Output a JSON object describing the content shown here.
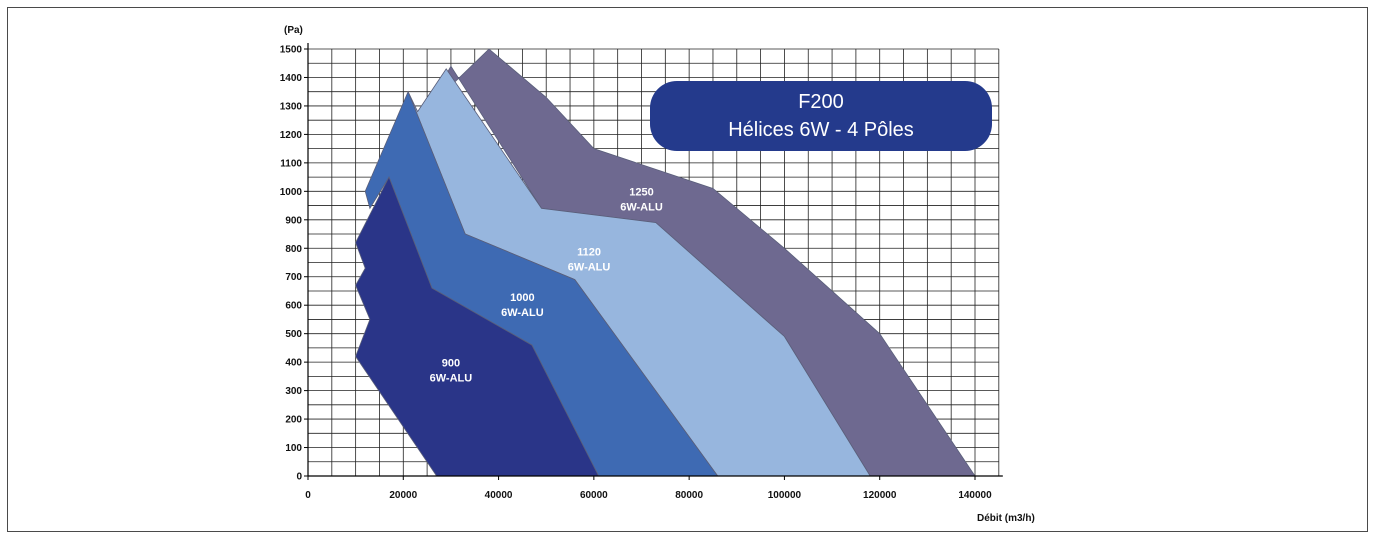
{
  "chart_data": {
    "type": "area",
    "title_box": {
      "line1": "F200",
      "line2": "Hélices 6W - 4 Pôles",
      "color": "#243a8c"
    },
    "ylabel": "(Pa)",
    "xlabel": "Débit (m3/h)",
    "xlim": [
      0,
      145000
    ],
    "ylim": [
      0,
      1500
    ],
    "x_ticks": [
      "0",
      "20000",
      "40000",
      "60000",
      "80000",
      "100000",
      "120000",
      "140000"
    ],
    "y_ticks": [
      "0",
      "100",
      "200",
      "300",
      "400",
      "500",
      "600",
      "700",
      "800",
      "900",
      "1000",
      "1100",
      "1200",
      "1300",
      "1400",
      "1500"
    ],
    "grid": true,
    "series": [
      {
        "name": "1250 6W-ALU",
        "label_line1": "1250",
        "label_line2": "6W-ALU",
        "label_at": [
          70000,
          985
        ],
        "color": "#6e6990",
        "points": [
          [
            25000,
            1290
          ],
          [
            38000,
            1500
          ],
          [
            50000,
            1330
          ],
          [
            60000,
            1150
          ],
          [
            85000,
            1010
          ],
          [
            100000,
            800
          ],
          [
            120000,
            500
          ],
          [
            140000,
            0
          ],
          [
            118000,
            0
          ],
          [
            100000,
            490
          ],
          [
            73000,
            890
          ],
          [
            49000,
            940
          ],
          [
            30000,
            1440
          ]
        ]
      },
      {
        "name": "1120 6W-ALU",
        "label_line1": "1120",
        "label_line2": "6W-ALU",
        "label_at": [
          59000,
          775
        ],
        "color": "#97b6de",
        "points": [
          [
            23000,
            1280
          ],
          [
            29000,
            1430
          ],
          [
            49000,
            940
          ],
          [
            73000,
            890
          ],
          [
            100000,
            490
          ],
          [
            118000,
            0
          ],
          [
            86000,
            0
          ],
          [
            56000,
            690
          ],
          [
            33000,
            850
          ],
          [
            21000,
            1350
          ]
        ]
      },
      {
        "name": "1000 6W-ALU",
        "label_line1": "1000",
        "label_line2": "6W-ALU",
        "label_at": [
          45000,
          615
        ],
        "color": "#3e6ab3",
        "points": [
          [
            12000,
            1000
          ],
          [
            21000,
            1350
          ],
          [
            33000,
            850
          ],
          [
            56000,
            690
          ],
          [
            86000,
            0
          ],
          [
            61000,
            0
          ],
          [
            47000,
            460
          ],
          [
            26000,
            660
          ],
          [
            17000,
            1050
          ],
          [
            13000,
            940
          ]
        ]
      },
      {
        "name": "900 6W-ALU",
        "label_line1": "900",
        "label_line2": "6W-ALU",
        "label_at": [
          30000,
          385
        ],
        "color": "#2a3588",
        "points": [
          [
            10000,
            820
          ],
          [
            17000,
            1050
          ],
          [
            26000,
            660
          ],
          [
            47000,
            460
          ],
          [
            61000,
            0
          ],
          [
            27000,
            0
          ],
          [
            10000,
            420
          ],
          [
            13000,
            550
          ],
          [
            10000,
            670
          ],
          [
            12000,
            730
          ]
        ]
      }
    ]
  }
}
